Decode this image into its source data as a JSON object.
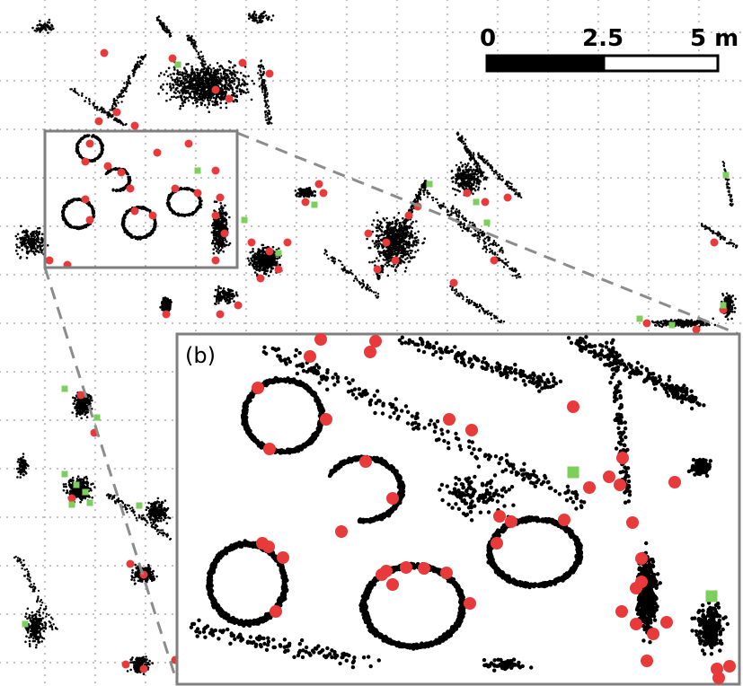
{
  "panel": {
    "label": "(b)"
  },
  "scale_bar": {
    "labels": [
      "0",
      "2.5",
      "5 m"
    ],
    "segments": [
      "black",
      "white"
    ]
  },
  "layers": [
    {
      "name": "point-cloud",
      "color": "#000000",
      "marker": "dot"
    },
    {
      "name": "red-markers",
      "color": "#e83a3a",
      "marker": "circle"
    },
    {
      "name": "green-markers",
      "color": "#7ccf5c",
      "marker": "square"
    }
  ],
  "colors": {
    "grid_dots": "#7a7a7a",
    "inset_frame": "#7f7f7f",
    "connector_lines": "#8c8c8c"
  }
}
